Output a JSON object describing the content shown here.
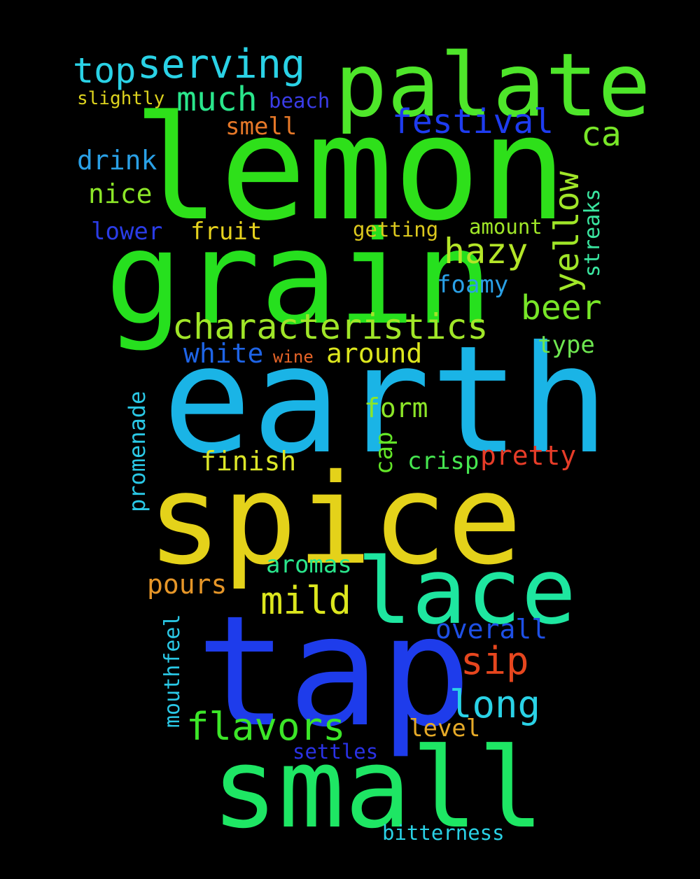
{
  "words": {
    "lemon": {
      "text": "lemon",
      "color": "#2ee01a"
    },
    "grain": {
      "text": "grain",
      "color": "#26e01e"
    },
    "earth": {
      "text": "earth",
      "color": "#1ab4e6"
    },
    "spice": {
      "text": "spice",
      "color": "#e4d21a"
    },
    "tap": {
      "text": "tap",
      "color": "#1e3ceb"
    },
    "small": {
      "text": "small",
      "color": "#1ee664"
    },
    "palate": {
      "text": "palate",
      "color": "#4ee62a"
    },
    "lace": {
      "text": "lace",
      "color": "#1ee6a0"
    },
    "serving": {
      "text": "serving",
      "color": "#2ad2e6"
    },
    "top": {
      "text": "top",
      "color": "#2ad2e6"
    },
    "much": {
      "text": "much",
      "color": "#2ae68c"
    },
    "festival": {
      "text": "festival",
      "color": "#1e3cf0"
    },
    "ca": {
      "text": "ca",
      "color": "#78e628"
    },
    "slightly": {
      "text": "slightly",
      "color": "#dcd21e"
    },
    "beach": {
      "text": "beach",
      "color": "#3a3ce6"
    },
    "smell": {
      "text": "smell",
      "color": "#e67828"
    },
    "drink": {
      "text": "drink",
      "color": "#2aa0e6"
    },
    "nice": {
      "text": "nice",
      "color": "#8ce628"
    },
    "yellow": {
      "text": "yellow",
      "color": "#a0e628"
    },
    "streaks": {
      "text": "streaks",
      "color": "#3ae6a0"
    },
    "lower": {
      "text": "lower",
      "color": "#2a3ce6"
    },
    "fruit": {
      "text": "fruit",
      "color": "#e6d21e"
    },
    "getting": {
      "text": "getting",
      "color": "#dcc81e"
    },
    "amount": {
      "text": "amount",
      "color": "#a0e628"
    },
    "hazy": {
      "text": "hazy",
      "color": "#b4e628"
    },
    "foamy": {
      "text": "foamy",
      "color": "#2aa0e6"
    },
    "beer": {
      "text": "beer",
      "color": "#78e628"
    },
    "characteristics": {
      "text": "characteristics",
      "color": "#a0e628"
    },
    "white": {
      "text": "white",
      "color": "#1e64e6"
    },
    "wine": {
      "text": "wine",
      "color": "#e66428"
    },
    "around": {
      "text": "around",
      "color": "#dce61e"
    },
    "type": {
      "text": "type",
      "color": "#6ee650"
    },
    "promenade": {
      "text": "promenade",
      "color": "#2ac8e6"
    },
    "form": {
      "text": "form",
      "color": "#8ce628"
    },
    "cap": {
      "text": "cap",
      "color": "#64e628"
    },
    "pretty": {
      "text": "pretty",
      "color": "#e63c28"
    },
    "finish": {
      "text": "finish",
      "color": "#dce628"
    },
    "crisp": {
      "text": "crisp",
      "color": "#46e650"
    },
    "aromas": {
      "text": "aromas",
      "color": "#2ae68c"
    },
    "pours": {
      "text": "pours",
      "color": "#e69628"
    },
    "mild": {
      "text": "mild",
      "color": "#dce61e"
    },
    "overall": {
      "text": "overall",
      "color": "#1e50e6"
    },
    "mouthfeel": {
      "text": "mouthfeel",
      "color": "#2ac8e6"
    },
    "sip": {
      "text": "sip",
      "color": "#e6461e"
    },
    "long": {
      "text": "long",
      "color": "#2ad2e6"
    },
    "flavors": {
      "text": "flavors",
      "color": "#3ce628"
    },
    "level": {
      "text": "level",
      "color": "#e6aa28"
    },
    "settles": {
      "text": "settles",
      "color": "#2a32e6"
    },
    "bitterness": {
      "text": "bitterness",
      "color": "#2ad2e6"
    }
  }
}
